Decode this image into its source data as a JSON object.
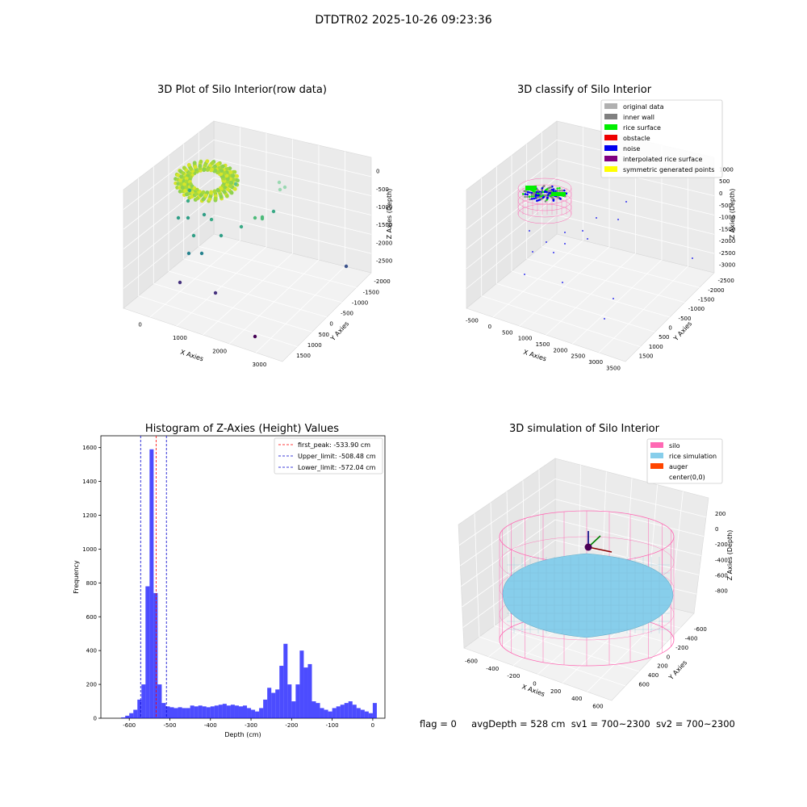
{
  "suptitle": "DTDTR02 2025-10-26 09:23:36",
  "panels": {
    "raw": {
      "title": "3D Plot of Silo Interior(row data)",
      "xlabel": "X Axies",
      "ylabel": "Y Axies",
      "zlabel": "Z Axies (Depth)",
      "xticks": [
        "0",
        "1000",
        "2000",
        "3000"
      ],
      "yticks": [
        "1500",
        "1000",
        "500",
        "0",
        "-500",
        "-1000",
        "-1500",
        "-2000"
      ],
      "zticks": [
        "0",
        "-500",
        "-1000",
        "-1500",
        "-2000",
        "-2500"
      ]
    },
    "classify": {
      "title": "3D classify of Silo Interior",
      "xlabel": "X Axies",
      "ylabel": "Y Axies",
      "zlabel": "Z Axies (Depth)",
      "xticks": [
        "-500",
        "0",
        "500",
        "1000",
        "1500",
        "2000",
        "2500",
        "3000",
        "3500"
      ],
      "yticks": [
        "1500",
        "1000",
        "500",
        "0",
        "-500",
        "-1000",
        "-1500",
        "-2000",
        "-2500"
      ],
      "zticks": [
        "1000",
        "500",
        "0",
        "-500",
        "-1000",
        "-1500",
        "-2000",
        "-2500",
        "-3000"
      ],
      "legend": [
        {
          "label": "original data",
          "color": "#b0b0b0"
        },
        {
          "label": "inner wall",
          "color": "#808080"
        },
        {
          "label": "rice surface",
          "color": "#00ee00"
        },
        {
          "label": "obstacle",
          "color": "#ee0000"
        },
        {
          "label": "noise",
          "color": "#0000ee"
        },
        {
          "label": "interpolated rice surface",
          "color": "#800080"
        },
        {
          "label": "symmetric generated points",
          "color": "#ffff00"
        }
      ]
    },
    "simulation": {
      "title": "3D simulation of Silo Interior",
      "xlabel": "X Axies",
      "ylabel": "Y Axies",
      "zlabel": "Z Axies (Depth)",
      "xticks": [
        "-600",
        "-400",
        "-200",
        "0",
        "200",
        "400",
        "600"
      ],
      "yticks": [
        "600",
        "400",
        "200",
        "0",
        "-200",
        "-400",
        "-600"
      ],
      "zticks": [
        "200",
        "0",
        "-200",
        "-400",
        "-600",
        "-800"
      ],
      "legend": [
        {
          "label": "silo",
          "color": "#ff69b4"
        },
        {
          "label": "rice simulation",
          "color": "#87ceeb"
        },
        {
          "label": "auger",
          "color": "#ff4500"
        },
        {
          "label": "center(0,0)",
          "color": "#ffffff"
        }
      ]
    }
  },
  "status": {
    "flag": "flag = 0",
    "avg_depth": "avgDepth = 528 cm",
    "sv1": "sv1 = 700~2300",
    "sv2": "sv2 = 700~2300"
  },
  "chart_data": [
    {
      "type": "bar",
      "title": "Histogram of Z-Axies (Height) Values",
      "xlabel": "Depth (cm)",
      "ylabel": "Frequency",
      "xlim": [
        -670,
        30
      ],
      "ylim": [
        0,
        1670
      ],
      "bar_color": "#0000ff",
      "bin_width": 10,
      "bins_left": [
        -620,
        -610,
        -600,
        -590,
        -580,
        -570,
        -560,
        -550,
        -540,
        -530,
        -520,
        -510,
        -500,
        -490,
        -480,
        -470,
        -460,
        -450,
        -440,
        -430,
        -420,
        -410,
        -400,
        -390,
        -380,
        -370,
        -360,
        -350,
        -340,
        -330,
        -320,
        -310,
        -300,
        -290,
        -280,
        -270,
        -260,
        -250,
        -240,
        -230,
        -220,
        -210,
        -200,
        -190,
        -180,
        -170,
        -160,
        -150,
        -140,
        -130,
        -120,
        -110,
        -100,
        -90,
        -80,
        -70,
        -60,
        -50,
        -40,
        -30,
        -20,
        -10,
        0
      ],
      "values": [
        5,
        15,
        30,
        50,
        110,
        200,
        780,
        1590,
        740,
        200,
        90,
        70,
        65,
        60,
        65,
        60,
        60,
        75,
        70,
        75,
        70,
        65,
        70,
        75,
        80,
        85,
        75,
        80,
        75,
        70,
        75,
        60,
        50,
        40,
        60,
        110,
        180,
        150,
        170,
        310,
        440,
        200,
        100,
        200,
        400,
        300,
        320,
        100,
        90,
        60,
        50,
        40,
        60,
        70,
        80,
        90,
        100,
        80,
        60,
        50,
        40,
        30,
        90
      ],
      "xticks": [
        -600,
        -500,
        -400,
        -300,
        -200,
        -100,
        0
      ],
      "yticks": [
        0,
        200,
        400,
        600,
        800,
        1000,
        1200,
        1400,
        1600
      ],
      "vlines": [
        {
          "label": "first_peak: -533.90 cm",
          "x": -533.9,
          "color": "#ff0000"
        },
        {
          "label": "Upper_limit: -508.48 cm",
          "x": -508.48,
          "color": "#0000cc"
        },
        {
          "label": "Lower_limit: -572.04 cm",
          "x": -572.04,
          "color": "#0000cc"
        }
      ],
      "legend_loc": "upper right"
    }
  ]
}
